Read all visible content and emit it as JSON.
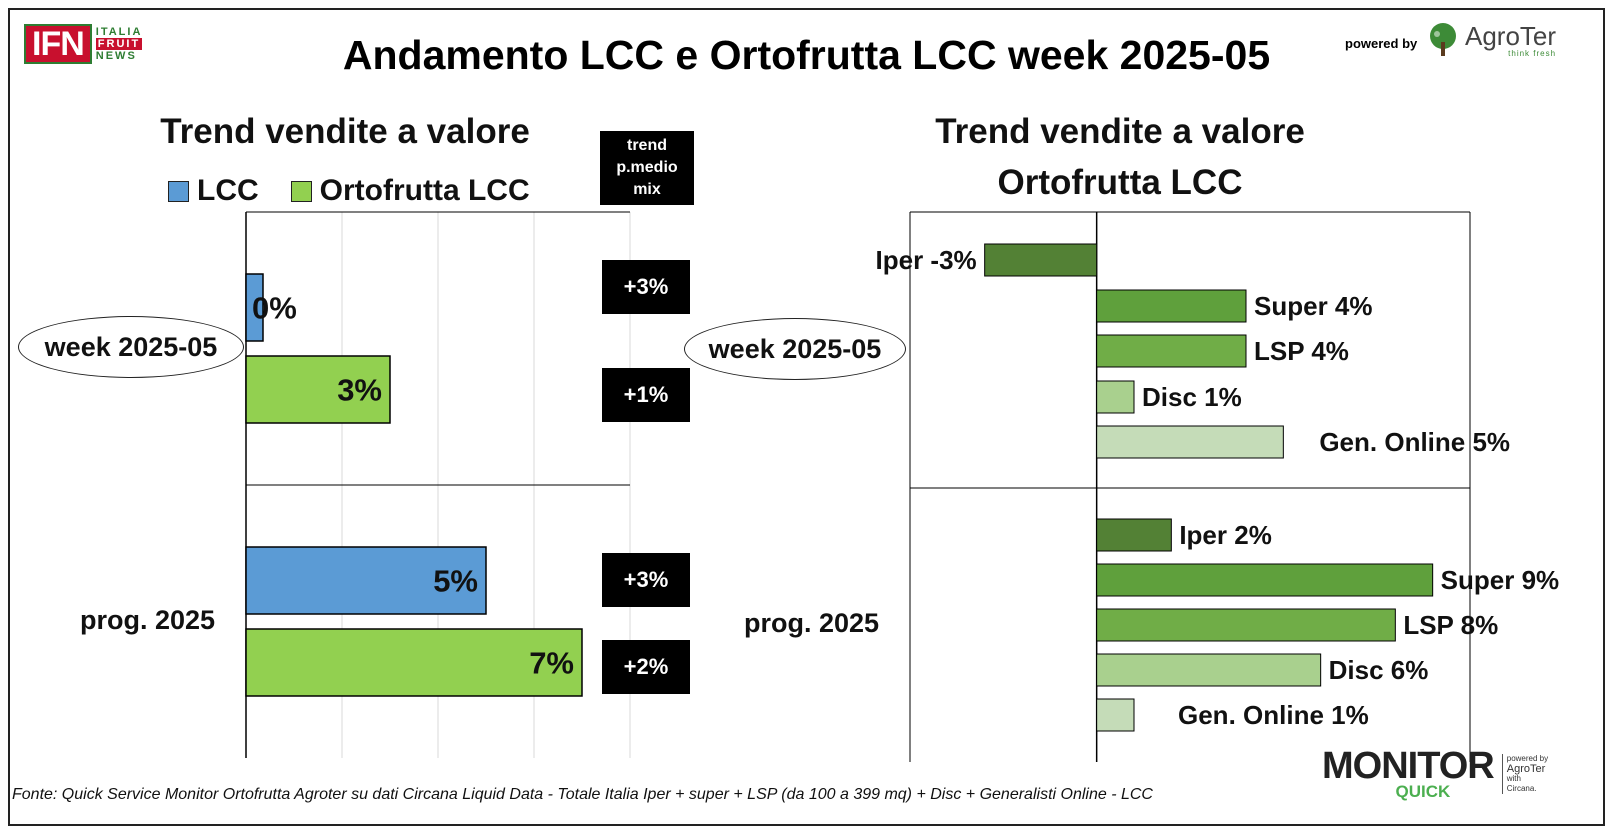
{
  "header": {
    "title": "Andamento LCC e Ortofrutta LCC week 2025-05",
    "ifn_logo": {
      "main": "IFN",
      "line1": "ITALIA",
      "line2": "FRUIT",
      "line3": "NEWS"
    },
    "powered_by": "powered by",
    "agroter_logo": {
      "name": "AgroTer",
      "tagline": "think fresh"
    }
  },
  "left_panel": {
    "subtitle": "Trend vendite a valore",
    "legend": [
      {
        "label": "LCC",
        "color": "#5b9bd5"
      },
      {
        "label": "Ortofrutta LCC",
        "color": "#92d050"
      }
    ],
    "trend_header": [
      "trend",
      "p.medio",
      "mix"
    ],
    "week_label": "week 2025-05",
    "prog_label": "prog. 2025",
    "trend_values": [
      "+3%",
      "+1%",
      "+3%",
      "+2%"
    ]
  },
  "right_panel": {
    "subtitle_line1": "Trend vendite a valore",
    "subtitle_line2": "Ortofrutta LCC",
    "week_label": "week 2025-05",
    "prog_label": "prog. 2025"
  },
  "chart_data": [
    {
      "type": "bar",
      "orientation": "horizontal",
      "title": "Trend vendite a valore",
      "categories": [
        "week 2025-05",
        "prog. 2025"
      ],
      "series": [
        {
          "name": "LCC",
          "color": "#5b9bd5",
          "values": [
            0,
            5
          ],
          "labels": [
            "0%",
            "5%"
          ]
        },
        {
          "name": "Ortofrutta LCC",
          "color": "#92d050",
          "values": [
            3,
            7
          ],
          "labels": [
            "3%",
            "7%"
          ]
        }
      ],
      "xlim": [
        0,
        8
      ],
      "grid": true,
      "legend_position": "top"
    },
    {
      "type": "bar",
      "orientation": "horizontal",
      "title": "Trend vendite a valore Ortofrutta LCC",
      "categories": [
        "week 2025-05",
        "prog. 2025"
      ],
      "groups": [
        {
          "category": "week 2025-05",
          "bars": [
            {
              "name": "Iper",
              "value": -3,
              "label": "Iper -3%",
              "color": "#538135"
            },
            {
              "name": "Super",
              "value": 4,
              "label": "Super 4%",
              "color": "#5fa03c"
            },
            {
              "name": "LSP",
              "value": 4,
              "label": "LSP 4%",
              "color": "#70ad47"
            },
            {
              "name": "Disc",
              "value": 1,
              "label": "Disc 1%",
              "color": "#a9d08e"
            },
            {
              "name": "Gen. Online",
              "value": 5,
              "label": "Gen. Online 5%",
              "color": "#c5dcb8"
            }
          ]
        },
        {
          "category": "prog. 2025",
          "bars": [
            {
              "name": "Iper",
              "value": 2,
              "label": "Iper 2%",
              "color": "#538135"
            },
            {
              "name": "Super",
              "value": 9,
              "label": "Super 9%",
              "color": "#5fa03c"
            },
            {
              "name": "LSP",
              "value": 8,
              "label": "LSP 8%",
              "color": "#70ad47"
            },
            {
              "name": "Disc",
              "value": 6,
              "label": "Disc 6%",
              "color": "#a9d08e"
            },
            {
              "name": "Gen. Online",
              "value": 1,
              "label": "Gen. Online 1%",
              "color": "#c5dcb8"
            }
          ]
        }
      ],
      "xlim": [
        -5,
        10
      ],
      "grid": false
    }
  ],
  "monitor_logo": {
    "main": "MONITOR",
    "sub": "QUICK",
    "side1": "powered by",
    "side2": "AgroTer",
    "side3": "with",
    "side4": "Circana."
  },
  "footer": "Fonte: Quick Service Monitor Ortofrutta Agroter su dati Circana Liquid Data - Totale Italia Iper + super + LSP (da 100 a 399 mq) + Disc + Generalisti Online - LCC"
}
